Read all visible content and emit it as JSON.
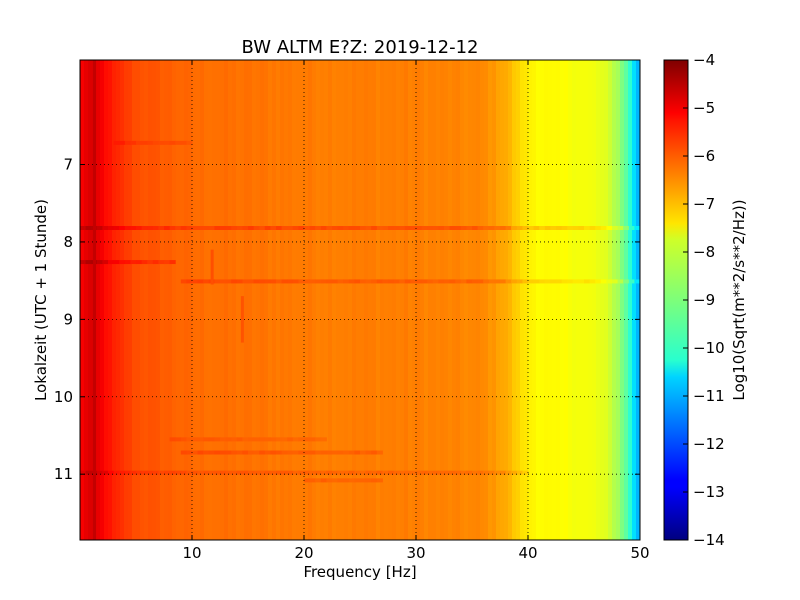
{
  "chart_data": {
    "type": "heatmap",
    "title": "BW ALTM E?Z: 2019-12-12",
    "xlabel": "Frequency [Hz]",
    "ylabel": "Lokalzeit (UTC + 1 Stunde)",
    "xlim": [
      0,
      50
    ],
    "ylim_hours": [
      5.65,
      11.85
    ],
    "y_axis_inverted": true,
    "x_ticks": [
      10,
      20,
      30,
      40,
      50
    ],
    "y_ticks": [
      7,
      8,
      9,
      10,
      11
    ],
    "grid": true,
    "colormap": "jet",
    "colorbar": {
      "label": "Log10(Sqrt(m**2/s**2/Hz))",
      "range": [
        -14,
        -4
      ],
      "ticks": [
        -4,
        -5,
        -6,
        -7,
        -8,
        -9,
        -10,
        -11,
        -12,
        -13,
        -14
      ]
    },
    "spectral_profile": {
      "frequency_hz": [
        0,
        0.5,
        1,
        1.5,
        2,
        3,
        5,
        10,
        20,
        30,
        36,
        38,
        39,
        40,
        41,
        42,
        44,
        46,
        47,
        48,
        49,
        49.5,
        50
      ],
      "log10_amplitude": [
        -5.3,
        -5.0,
        -4.9,
        -5.0,
        -5.2,
        -5.6,
        -6.0,
        -6.3,
        -6.45,
        -6.5,
        -6.6,
        -6.9,
        -7.3,
        -7.6,
        -7.7,
        -7.75,
        -7.8,
        -7.9,
        -8.1,
        -8.6,
        -9.6,
        -10.6,
        -11.2
      ]
    },
    "events": [
      {
        "hour": 7.82,
        "f_start_hz": 0,
        "f_end_hz": 50,
        "delta_log10": 0.45
      },
      {
        "hour": 8.51,
        "f_start_hz": 9,
        "f_end_hz": 50,
        "delta_log10": 0.35
      },
      {
        "hour": 8.26,
        "f_start_hz": 0,
        "f_end_hz": 8.5,
        "delta_log10": 0.4
      },
      {
        "hour": 10.72,
        "f_start_hz": 9,
        "f_end_hz": 27,
        "delta_log10": 0.3
      },
      {
        "hour": 10.55,
        "f_start_hz": 8,
        "f_end_hz": 22,
        "delta_log10": 0.2
      },
      {
        "hour": 10.98,
        "f_start_hz": 0,
        "f_end_hz": 40,
        "delta_log10": 0.25
      },
      {
        "hour": 11.08,
        "f_start_hz": 20,
        "f_end_hz": 27,
        "delta_log10": 0.25
      },
      {
        "hour": 6.72,
        "f_start_hz": 3,
        "f_end_hz": 10,
        "delta_log10": 0.2
      }
    ],
    "vertical_features": [
      {
        "f_hz": 1.3,
        "h_start": 5.65,
        "h_end": 11.85,
        "delta_log10": 0.3
      },
      {
        "f_hz": 14.5,
        "h_start": 8.7,
        "h_end": 9.3,
        "delta_log10": 0.3
      },
      {
        "f_hz": 11.8,
        "h_start": 8.1,
        "h_end": 8.55,
        "delta_log10": 0.3
      }
    ]
  }
}
